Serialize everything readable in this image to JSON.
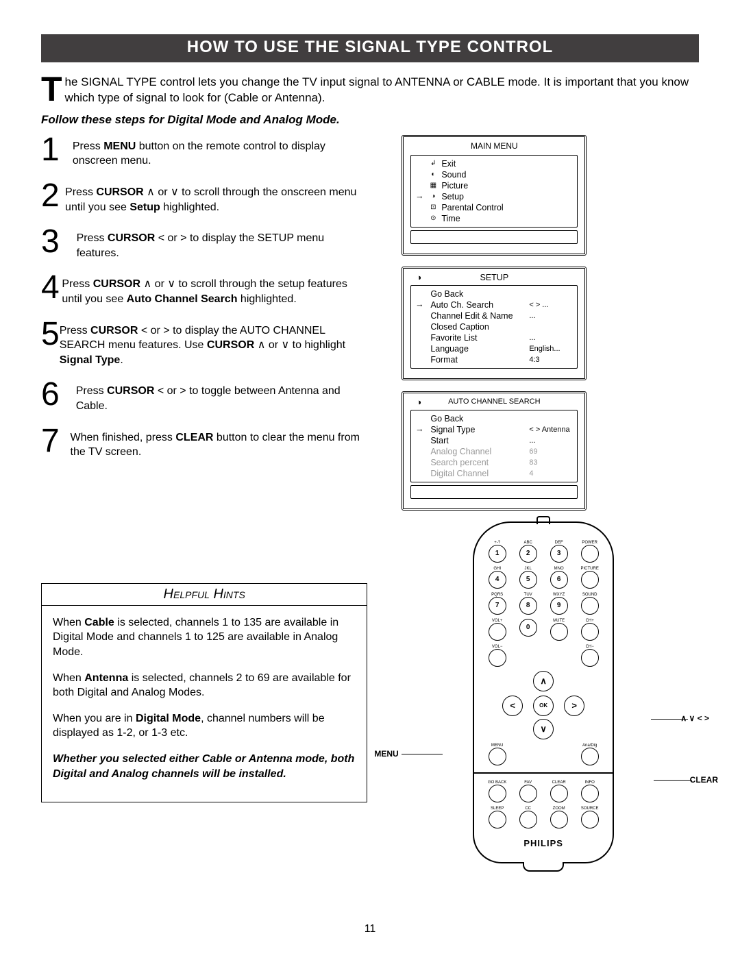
{
  "title": "HOW TO USE THE SIGNAL TYPE CONTROL",
  "intro_dropcap": "T",
  "intro_text": "he SIGNAL TYPE control lets you change the TV input signal to ANTENNA or CABLE mode. It is important that you know which type of signal to look for (Cable or Antenna).",
  "instruction": "Follow these steps for Digital Mode and Analog Mode.",
  "steps": [
    {
      "n": "1",
      "pre": "Press ",
      "b": "MENU",
      "post": " button on the remote control to display onscreen menu."
    },
    {
      "n": "2",
      "pre": "Press ",
      "b": "CURSOR",
      "mid": " ∧ or ∨ to scroll through the onscreen menu until you see ",
      "b2": "Setup",
      "post": " highlighted."
    },
    {
      "n": "3",
      "pre": "Press ",
      "b": "CURSOR",
      "post": " < or > to display the SETUP menu features."
    },
    {
      "n": "4",
      "pre": "Press ",
      "b": "CURSOR",
      "mid": " ∧ or ∨ to scroll through the setup features until you see ",
      "b2": "Auto Channel Search",
      "post": " highlighted."
    },
    {
      "n": "5",
      "pre": "Press ",
      "b": "CURSOR",
      "mid": " < or > to display the AUTO CHANNEL SEARCH menu features. Use ",
      "b2": "CURSOR",
      "post": " ∧ or ∨ to highlight ",
      "b3": "Signal Type",
      "tail": "."
    },
    {
      "n": "6",
      "pre": "Press ",
      "b": "CURSOR",
      "post": " < or > to toggle between Antenna and Cable."
    },
    {
      "n": "7",
      "pre": "When finished, press ",
      "b": "CLEAR",
      "post": " button to clear the menu from the TV screen."
    }
  ],
  "menu1": {
    "title": "MAIN MENU",
    "items": [
      {
        "mark": "",
        "icon": "↲",
        "label": "Exit"
      },
      {
        "mark": "",
        "icon": "◐",
        "label": "Sound"
      },
      {
        "mark": "",
        "icon": "▦",
        "label": "Picture"
      },
      {
        "mark": "→",
        "icon": "◑",
        "label": "Setup"
      },
      {
        "mark": "",
        "icon": "⊡",
        "label": "Parental Control"
      },
      {
        "mark": "",
        "icon": "⊙",
        "label": "Time"
      }
    ]
  },
  "menu2": {
    "title": "SETUP",
    "icon": "◑",
    "items": [
      {
        "mark": "",
        "label": "Go Back",
        "val": ""
      },
      {
        "mark": "→",
        "label": "Auto Ch. Search",
        "val": "< > ..."
      },
      {
        "mark": "",
        "label": "Channel Edit & Name",
        "val": "..."
      },
      {
        "mark": "",
        "label": "Closed Caption",
        "val": ""
      },
      {
        "mark": "",
        "label": "Favorite List",
        "val": "..."
      },
      {
        "mark": "",
        "label": "Language",
        "val": "English..."
      },
      {
        "mark": "",
        "label": "Format",
        "val": "4:3"
      }
    ]
  },
  "menu3": {
    "title": "AUTO CHANNEL SEARCH",
    "icon": "◑",
    "items": [
      {
        "mark": "",
        "label": "Go Back",
        "val": "",
        "gray": false
      },
      {
        "mark": "→",
        "label": "Signal Type",
        "val": "< > Antenna",
        "gray": false
      },
      {
        "mark": "",
        "label": "Start",
        "val": "...",
        "gray": false
      },
      {
        "mark": "",
        "label": "Analog Channel",
        "val": "69",
        "gray": true
      },
      {
        "mark": "",
        "label": "Search percent",
        "val": "83",
        "gray": true
      },
      {
        "mark": "",
        "label": "Digital Channel",
        "val": "4",
        "gray": true
      }
    ]
  },
  "hints": {
    "title": "Helpful Hints",
    "p1a": "When ",
    "p1b": "Cable",
    "p1c": " is selected, channels 1 to 135 are available in Digital Mode and channels 1 to 125 are available in Analog Mode.",
    "p2a": "When ",
    "p2b": "Antenna",
    "p2c": " is selected, channels 2 to 69 are available for both Digital and Analog Modes.",
    "p3a": "When you are in ",
    "p3b": "Digital Mode",
    "p3c": ", channel numbers will be displayed as 1-2, or 1-3 etc.",
    "p4": "Whether you selected either Cable or Antenna mode, both Digital and Analog channels will be installed."
  },
  "remote": {
    "row_labels": [
      [
        "+-?",
        "ABC",
        "DEF",
        "POWER"
      ],
      [
        "GHI",
        "JKL",
        "MNO",
        "PICTURE"
      ],
      [
        "PQRS",
        "TUV",
        "WXYZ",
        "SOUND"
      ],
      [
        "VOL+",
        "",
        "MUTE",
        "CH+"
      ],
      [
        "VOL−",
        "",
        "",
        "CH−"
      ]
    ],
    "digits": [
      [
        "1",
        "2",
        "3",
        ""
      ],
      [
        "4",
        "5",
        "6",
        ""
      ],
      [
        "7",
        "8",
        "9",
        ""
      ],
      [
        "",
        "0",
        "",
        ""
      ]
    ],
    "nav": {
      "up": "∧",
      "down": "∨",
      "left": "<",
      "right": ">",
      "ok": "OK"
    },
    "menu_row": [
      "MENU",
      "",
      "",
      "Ana/Dig"
    ],
    "func_row1": [
      "GO BACK",
      "FAV",
      "CLEAR",
      "INFO"
    ],
    "func_row2": [
      "SLEEP",
      "CC",
      "ZOOM",
      "SOURCE"
    ],
    "brand": "PHILIPS"
  },
  "callouts": {
    "menu": "MENU",
    "nav": "∧  ∨  <  >",
    "clear": "CLEAR"
  },
  "page_number": "11"
}
